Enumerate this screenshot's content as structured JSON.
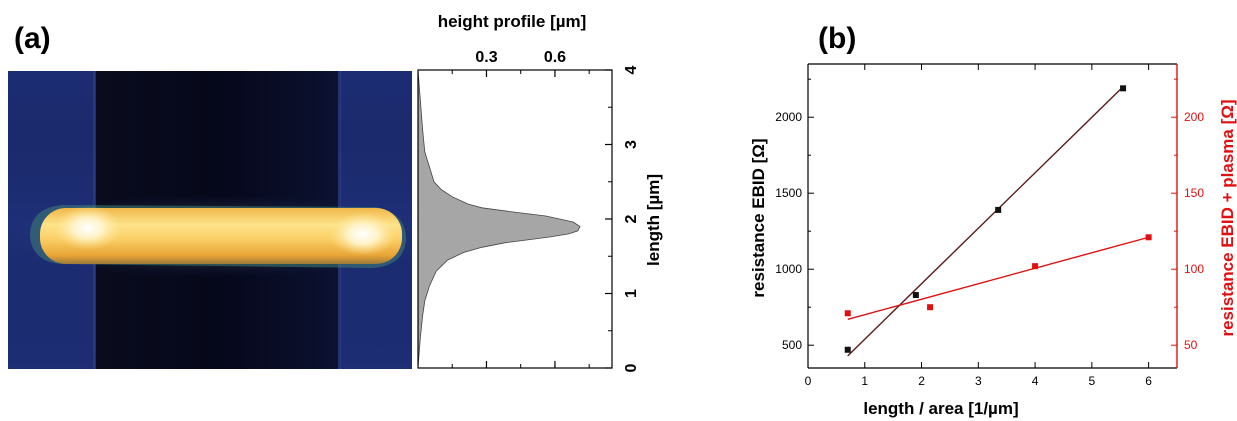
{
  "panels": {
    "a_label": "(a)",
    "b_label": "(b)"
  },
  "chart_data": [
    {
      "id": "a",
      "type": "area",
      "xlabel": "height profile [µm]",
      "ylabel": "length [µm]",
      "xticks": [
        0.3,
        0.6
      ],
      "xtick_labels": [
        "0.3",
        "0.6"
      ],
      "yticks": [
        0,
        1,
        2,
        3,
        4
      ],
      "ytick_labels": [
        "0",
        "1",
        "2",
        "3",
        "4"
      ],
      "xlim": [
        0,
        0.85
      ],
      "ylim": [
        0,
        4
      ],
      "x": [
        0.0,
        0.01,
        0.02,
        0.03,
        0.05,
        0.08,
        0.13,
        0.2,
        0.28,
        0.38,
        0.48,
        0.58,
        0.66,
        0.7,
        0.71,
        0.68,
        0.56,
        0.4,
        0.28,
        0.22,
        0.15,
        0.1,
        0.07,
        0.05,
        0.03,
        0.02,
        0.01,
        0.0
      ],
      "y": [
        0.0,
        0.4,
        0.7,
        0.9,
        1.1,
        1.3,
        1.45,
        1.55,
        1.62,
        1.68,
        1.72,
        1.76,
        1.8,
        1.84,
        1.9,
        1.96,
        2.04,
        2.1,
        2.15,
        2.2,
        2.3,
        2.4,
        2.5,
        2.7,
        2.9,
        3.2,
        3.6,
        4.0
      ],
      "fill_color": "#a6a6a6"
    },
    {
      "id": "b",
      "type": "scatter",
      "xlabel": "length / area [1/µm]",
      "ylabel": "resistance EBID [Ω]",
      "y2label": "resistance EBID + plasma [Ω]",
      "xlim": [
        0,
        6.5
      ],
      "ylim": [
        350,
        2350
      ],
      "y2lim": [
        35,
        235
      ],
      "xticks": [
        0,
        1,
        2,
        3,
        4,
        5,
        6
      ],
      "xtick_labels": [
        "0",
        "1",
        "2",
        "3",
        "4",
        "5",
        "6"
      ],
      "yticks": [
        500,
        1000,
        1500,
        2000
      ],
      "ytick_labels": [
        "500",
        "1000",
        "1500",
        "2000"
      ],
      "y2ticks": [
        50,
        100,
        150,
        200
      ],
      "y2tick_labels": [
        "50",
        "100",
        "150",
        "200"
      ],
      "series": [
        {
          "axis": "left",
          "color": "#111111",
          "fit_color": "#5a1a1a",
          "x": [
            0.7,
            1.9,
            3.35,
            5.55
          ],
          "y": [
            470,
            830,
            1390,
            2190
          ],
          "fit": [
            [
              0.7,
              430
            ],
            [
              5.55,
              2200
            ]
          ]
        },
        {
          "axis": "right",
          "color": "#e01010",
          "fit_color": "#e01010",
          "x": [
            0.7,
            2.15,
            4.0,
            6.0
          ],
          "y": [
            71,
            75,
            102,
            121
          ],
          "fit": [
            [
              0.7,
              67
            ],
            [
              6.0,
              121
            ]
          ]
        }
      ]
    }
  ]
}
